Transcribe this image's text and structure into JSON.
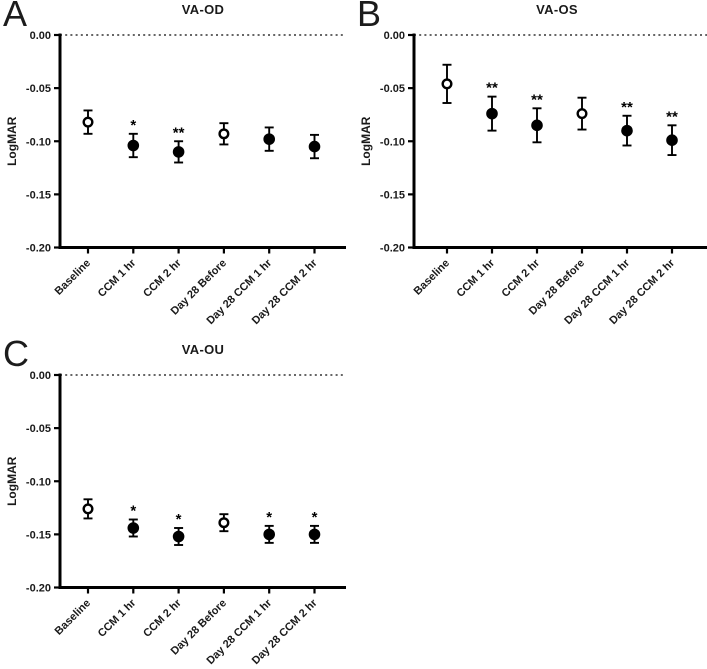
{
  "shared": {
    "ylabel": "LogMAR",
    "categories": [
      "Baseline",
      "CCM 1 hr",
      "CCM 2 hr",
      "Day 28 Before",
      "Day 28 CCM 1 hr",
      "Day 28 CCM 2 hr"
    ]
  },
  "chart_data": [
    {
      "type": "scatter",
      "panel_label": "A",
      "title": "VA-OD",
      "xlabel": "",
      "ylabel": "LogMAR",
      "ylim": [
        -0.2,
        0.0
      ],
      "yticks": [
        {
          "value": 0,
          "label": "0.00"
        },
        {
          "value": -0.05,
          "label": "-0.05"
        },
        {
          "value": -0.1,
          "label": "-0.10"
        },
        {
          "value": -0.15,
          "label": "-0.15"
        },
        {
          "value": -0.2,
          "label": "-0.20"
        }
      ],
      "reference_line": 0,
      "grid": false,
      "legend": "none",
      "categories": [
        "Baseline",
        "CCM 1 hr",
        "CCM 2 hr",
        "Day 28 Before",
        "Day 28 CCM 1 hr",
        "Day 28 CCM 2 hr"
      ],
      "points": [
        {
          "category": "Baseline",
          "value": -0.082,
          "error": 0.011,
          "marker": "open",
          "significance": ""
        },
        {
          "category": "CCM 1 hr",
          "value": -0.104,
          "error": 0.011,
          "marker": "filled",
          "significance": "*"
        },
        {
          "category": "CCM 2 hr",
          "value": -0.11,
          "error": 0.01,
          "marker": "filled",
          "significance": "**"
        },
        {
          "category": "Day 28 Before",
          "value": -0.093,
          "error": 0.01,
          "marker": "open",
          "significance": ""
        },
        {
          "category": "Day 28 CCM 1 hr",
          "value": -0.098,
          "error": 0.011,
          "marker": "filled",
          "significance": ""
        },
        {
          "category": "Day 28 CCM 2 hr",
          "value": -0.105,
          "error": 0.011,
          "marker": "filled",
          "significance": ""
        }
      ]
    },
    {
      "type": "scatter",
      "panel_label": "B",
      "title": "VA-OS",
      "xlabel": "",
      "ylabel": "LogMAR",
      "ylim": [
        -0.2,
        0.0
      ],
      "yticks": [
        {
          "value": 0,
          "label": "0.00"
        },
        {
          "value": -0.05,
          "label": "-0.05"
        },
        {
          "value": -0.1,
          "label": "-0.10"
        },
        {
          "value": -0.15,
          "label": "-0.15"
        },
        {
          "value": -0.2,
          "label": "-0.20"
        }
      ],
      "reference_line": 0,
      "grid": false,
      "legend": "none",
      "categories": [
        "Baseline",
        "CCM 1 hr",
        "CCM 2 hr",
        "Day 28 Before",
        "Day 28 CCM 1 hr",
        "Day 28 CCM 2 hr"
      ],
      "points": [
        {
          "category": "Baseline",
          "value": -0.046,
          "error": 0.018,
          "marker": "open",
          "significance": ""
        },
        {
          "category": "CCM 1 hr",
          "value": -0.074,
          "error": 0.016,
          "marker": "filled",
          "significance": "**"
        },
        {
          "category": "CCM 2 hr",
          "value": -0.085,
          "error": 0.016,
          "marker": "filled",
          "significance": "**"
        },
        {
          "category": "Day 28 Before",
          "value": -0.074,
          "error": 0.015,
          "marker": "open",
          "significance": ""
        },
        {
          "category": "Day 28 CCM 1 hr",
          "value": -0.09,
          "error": 0.014,
          "marker": "filled",
          "significance": "**"
        },
        {
          "category": "Day 28 CCM 2 hr",
          "value": -0.099,
          "error": 0.014,
          "marker": "filled",
          "significance": "**"
        }
      ]
    },
    {
      "type": "scatter",
      "panel_label": "C",
      "title": "VA-OU",
      "xlabel": "",
      "ylabel": "LogMAR",
      "ylim": [
        -0.2,
        0.0
      ],
      "yticks": [
        {
          "value": 0,
          "label": "0.00"
        },
        {
          "value": -0.05,
          "label": "-0.05"
        },
        {
          "value": -0.1,
          "label": "-0.10"
        },
        {
          "value": -0.15,
          "label": "-0.15"
        },
        {
          "value": -0.2,
          "label": "-0.20"
        }
      ],
      "reference_line": 0,
      "grid": false,
      "legend": "none",
      "categories": [
        "Baseline",
        "CCM 1 hr",
        "CCM 2 hr",
        "Day 28 Before",
        "Day 28 CCM 1 hr",
        "Day 28 CCM 2 hr"
      ],
      "points": [
        {
          "category": "Baseline",
          "value": -0.126,
          "error": 0.009,
          "marker": "open",
          "significance": ""
        },
        {
          "category": "CCM 1 hr",
          "value": -0.144,
          "error": 0.008,
          "marker": "filled",
          "significance": "*"
        },
        {
          "category": "CCM 2 hr",
          "value": -0.152,
          "error": 0.008,
          "marker": "filled",
          "significance": "*"
        },
        {
          "category": "Day 28 Before",
          "value": -0.139,
          "error": 0.008,
          "marker": "open",
          "significance": ""
        },
        {
          "category": "Day 28 CCM 1 hr",
          "value": -0.15,
          "error": 0.008,
          "marker": "filled",
          "significance": "*"
        },
        {
          "category": "Day 28 CCM 2 hr",
          "value": -0.15,
          "error": 0.008,
          "marker": "filled",
          "significance": "*"
        }
      ]
    }
  ]
}
